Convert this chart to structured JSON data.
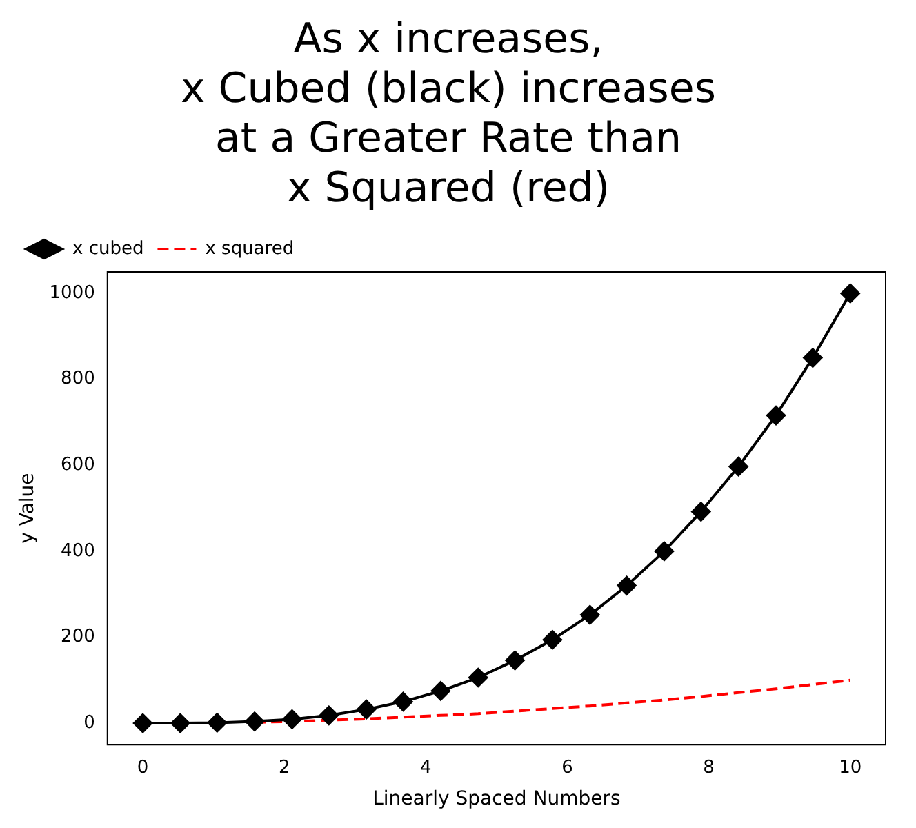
{
  "chart_data": {
    "type": "line",
    "title": "As x increases,\nx Cubed (black) increases\nat a Greater Rate than\nx Squared (red)",
    "xlabel": "Linearly Spaced Numbers",
    "ylabel": "y Value",
    "x": [
      0,
      0.53,
      1.05,
      1.58,
      2.11,
      2.63,
      3.16,
      3.68,
      4.21,
      4.74,
      5.26,
      5.79,
      6.32,
      6.84,
      7.37,
      7.89,
      8.42,
      8.95,
      9.47,
      10
    ],
    "series": [
      {
        "name": "x cubed",
        "color": "#000000",
        "marker": "diamond",
        "line_style": "solid",
        "values": [
          0,
          0,
          1,
          4,
          9,
          18,
          32,
          50,
          75,
          106,
          146,
          194,
          252,
          320,
          400,
          492,
          597,
          716,
          850,
          1000
        ]
      },
      {
        "name": "x squared",
        "color": "#ff0000",
        "marker": "none",
        "line_style": "dashed",
        "values": [
          null,
          null,
          null,
          2,
          4,
          7,
          10,
          14,
          18,
          22,
          28,
          34,
          40,
          47,
          54,
          62,
          71,
          80,
          90,
          100
        ]
      }
    ],
    "xlim": [
      -0.5,
      10.5
    ],
    "xticks": [
      0,
      2,
      4,
      6,
      8,
      10
    ],
    "ylim": [
      -50,
      1050
    ],
    "yticks": [
      0,
      200,
      400,
      600,
      800,
      1000
    ],
    "grid": false,
    "legend": "top left"
  }
}
